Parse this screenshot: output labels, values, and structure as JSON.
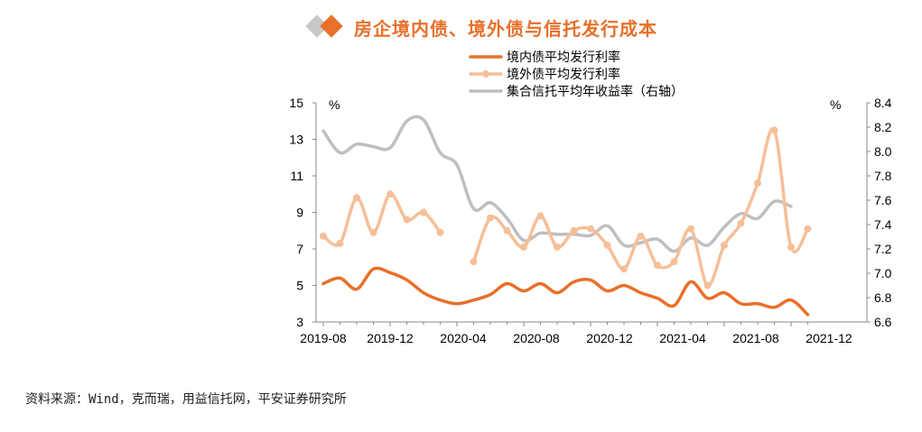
{
  "title": "房企境内债、境外债与信托发行成本",
  "source": "资料来源：Wind，克而瑞，用益信托网，平安证券研究所",
  "chart_data": {
    "type": "line",
    "x_tick_labels": [
      "2019-08",
      "2019-12",
      "2020-04",
      "2020-08",
      "2020-12",
      "2021-04",
      "2021-08",
      "2021-12"
    ],
    "left_axis": {
      "unit": "%",
      "ylim": [
        3,
        15
      ],
      "ticks": [
        3,
        5,
        7,
        9,
        11,
        13,
        15
      ]
    },
    "right_axis": {
      "unit": "%",
      "ylim": [
        6.6,
        8.4
      ],
      "ticks": [
        "6.6",
        "6.8",
        "7.0",
        "7.2",
        "7.4",
        "7.6",
        "7.8",
        "8.0",
        "8.2",
        "8.4"
      ]
    },
    "legend_position": "top-right",
    "colors": {
      "domestic": "#e8702a",
      "offshore": "#f6bf98",
      "trust": "#bfbfbf"
    },
    "series": [
      {
        "name": "境内债平均发行利率",
        "axis": "left",
        "values": [
          5.1,
          5.4,
          4.8,
          5.9,
          5.7,
          5.3,
          4.6,
          4.2,
          4.0,
          4.2,
          4.5,
          5.1,
          4.7,
          5.1,
          4.6,
          5.2,
          5.3,
          4.7,
          5.0,
          4.6,
          4.3,
          3.9,
          5.2,
          4.3,
          4.6,
          4.0,
          4.0,
          3.8,
          4.2,
          3.4
        ]
      },
      {
        "name": "境外债平均发行利率",
        "axis": "left",
        "marker": "circle",
        "values": [
          7.7,
          7.3,
          9.8,
          7.9,
          10.0,
          8.6,
          9.0,
          7.9,
          null,
          6.3,
          8.7,
          8.0,
          7.1,
          8.8,
          7.1,
          8.0,
          8.1,
          7.2,
          5.9,
          7.7,
          6.1,
          6.3,
          8.1,
          5.0,
          7.2,
          8.4,
          10.6,
          13.5,
          7.1,
          8.1
        ]
      },
      {
        "name": "集合信托平均年收益率（右轴）",
        "axis": "right",
        "values": [
          8.17,
          7.99,
          8.06,
          8.04,
          8.03,
          8.25,
          8.26,
          7.99,
          7.89,
          7.53,
          7.58,
          7.45,
          7.27,
          7.33,
          7.32,
          7.32,
          7.31,
          7.39,
          7.23,
          7.25,
          7.28,
          7.18,
          7.29,
          7.23,
          7.38,
          7.49,
          7.45,
          7.59,
          7.55
        ]
      }
    ]
  }
}
